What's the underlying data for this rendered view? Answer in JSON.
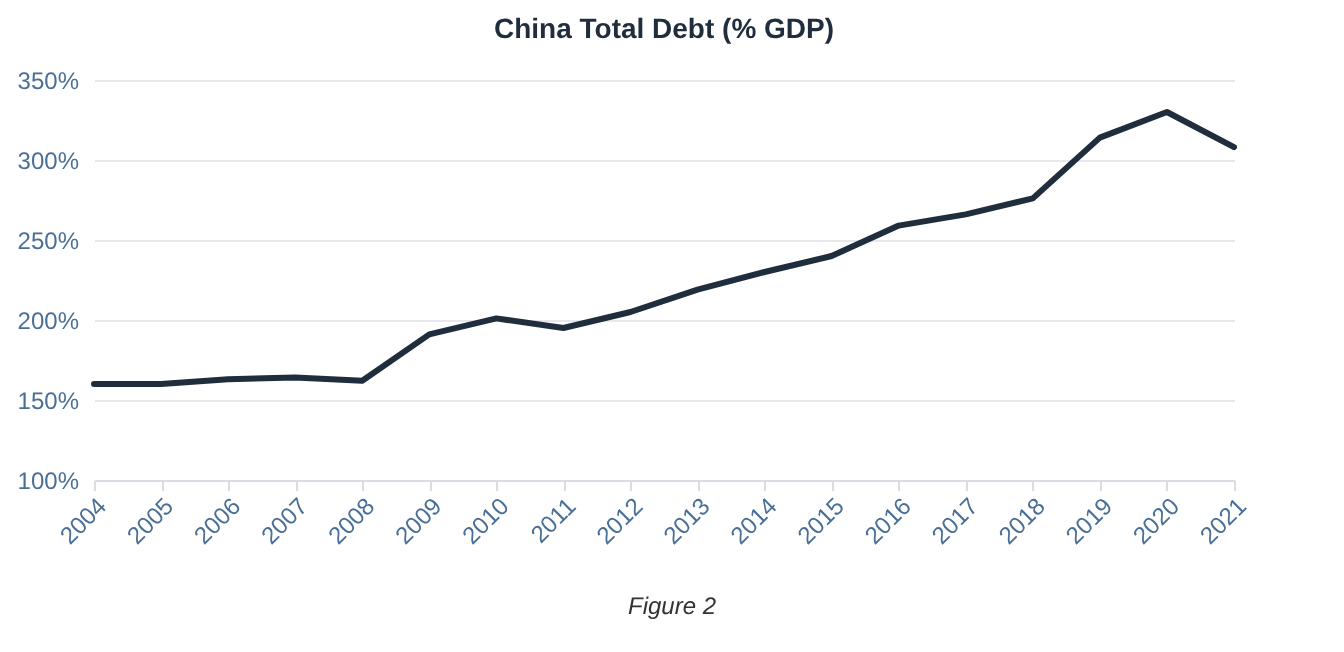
{
  "chart_data": {
    "type": "line",
    "title": "China Total Debt (% GDP)",
    "categories": [
      "2004",
      "2005",
      "2006",
      "2007",
      "2008",
      "2009",
      "2010",
      "2011",
      "2012",
      "2013",
      "2014",
      "2015",
      "2016",
      "2017",
      "2018",
      "2019",
      "2020",
      "2021"
    ],
    "series": [
      {
        "color": "#1f2d3d",
        "values": [
          160,
          160,
          163,
          164,
          162,
          191,
          201,
          195,
          205,
          219,
          230,
          240,
          259,
          266,
          276,
          314,
          330,
          308
        ]
      }
    ],
    "ylim": [
      100,
      350
    ],
    "yticks": [
      {
        "value": 100,
        "label": "100%"
      },
      {
        "value": 150,
        "label": "150%"
      },
      {
        "value": 200,
        "label": "200%"
      },
      {
        "value": 250,
        "label": "250%"
      },
      {
        "value": 300,
        "label": "300%"
      },
      {
        "value": 350,
        "label": "350%"
      }
    ],
    "grid": "y",
    "marker": "none",
    "line_style": "solid",
    "annotations": [
      "Figure 2"
    ]
  }
}
